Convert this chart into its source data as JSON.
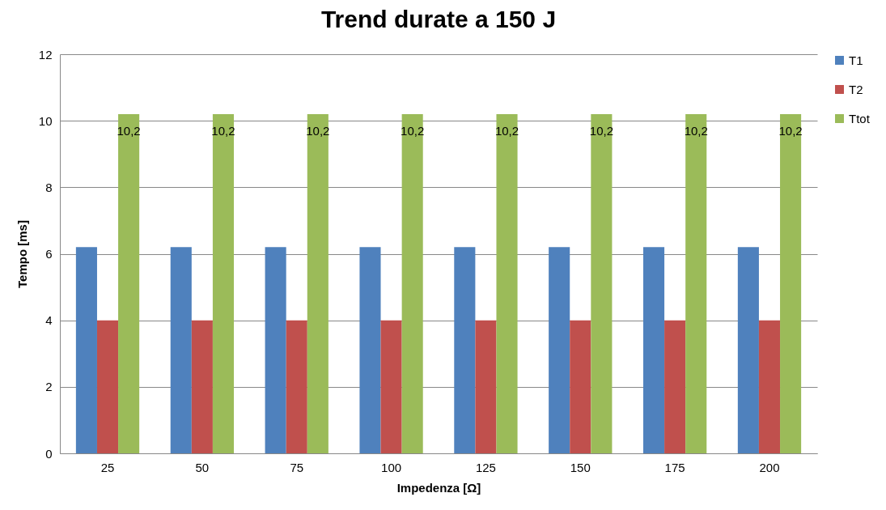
{
  "chart_data": {
    "type": "bar",
    "title": "Trend durate a 150 J",
    "xlabel": "Impedenza [Ω]",
    "ylabel": "Tempo [ms]",
    "categories": [
      "25",
      "50",
      "75",
      "100",
      "125",
      "150",
      "175",
      "200"
    ],
    "series": [
      {
        "name": "T1",
        "color": "#4f81bd",
        "values": [
          6.2,
          6.2,
          6.2,
          6.2,
          6.2,
          6.2,
          6.2,
          6.2
        ]
      },
      {
        "name": "T2",
        "color": "#c0504d",
        "values": [
          4,
          4,
          4,
          4,
          4,
          4,
          4,
          4
        ]
      },
      {
        "name": "Ttot",
        "color": "#9bbb59",
        "values": [
          10.2,
          10.2,
          10.2,
          10.2,
          10.2,
          10.2,
          10.2,
          10.2
        ],
        "value_labels": [
          "10,2",
          "10,2",
          "10,2",
          "10,2",
          "10,2",
          "10,2",
          "10,2",
          "10,2"
        ]
      }
    ],
    "ylim": [
      0,
      12
    ],
    "yticks": [
      0,
      2,
      4,
      6,
      8,
      10,
      12
    ],
    "grid": "y",
    "legend": "right"
  }
}
